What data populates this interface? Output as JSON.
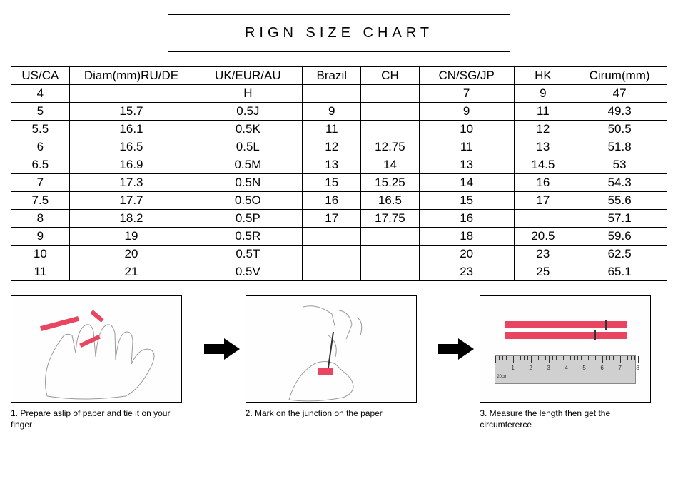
{
  "title": "RIGN  SIZE  CHART",
  "table": {
    "columns": [
      "US/CA",
      "Diam(mm)RU/DE",
      "UK/EUR/AU",
      "Brazil",
      "CH",
      "CN/SG/JP",
      "HK",
      "Cirum(mm)"
    ],
    "col_widths": [
      "8%",
      "17%",
      "15%",
      "8%",
      "8%",
      "13%",
      "8%",
      "13%"
    ],
    "rows": [
      [
        "4",
        "",
        "H",
        "",
        "",
        "7",
        "9",
        "47"
      ],
      [
        "5",
        "15.7",
        "0.5J",
        "9",
        "",
        "9",
        "11",
        "49.3"
      ],
      [
        "5.5",
        "16.1",
        "0.5K",
        "11",
        "",
        "10",
        "12",
        "50.5"
      ],
      [
        "6",
        "16.5",
        "0.5L",
        "12",
        "12.75",
        "11",
        "13",
        "51.8"
      ],
      [
        "6.5",
        "16.9",
        "0.5M",
        "13",
        "14",
        "13",
        "14.5",
        "53"
      ],
      [
        "7",
        "17.3",
        "0.5N",
        "15",
        "15.25",
        "14",
        "16",
        "54.3"
      ],
      [
        "7.5",
        "17.7",
        "0.5O",
        "16",
        "16.5",
        "15",
        "17",
        "55.6"
      ],
      [
        "8",
        "18.2",
        "0.5P",
        "17",
        "17.75",
        "16",
        "",
        "57.1"
      ],
      [
        "9",
        "19",
        "0.5R",
        "",
        "",
        "18",
        "20.5",
        "59.6"
      ],
      [
        "10",
        "20",
        "0.5T",
        "",
        "",
        "20",
        "23",
        "62.5"
      ],
      [
        "11",
        "21",
        "0.5V",
        "",
        "",
        "23",
        "25",
        "65.1"
      ]
    ]
  },
  "steps": [
    {
      "caption": "1. Prepare aslip of paper and tie it on your finger"
    },
    {
      "caption": "2. Mark on the junction on the paper"
    },
    {
      "caption": "3. Measure the length then get the circumfererce"
    }
  ],
  "colors": {
    "border": "#000000",
    "text": "#000000",
    "background": "#ffffff",
    "accent": "#e94560",
    "ruler": "#d0d0d0",
    "line_art": "#888888"
  },
  "ruler": {
    "values": [
      "1",
      "2",
      "3",
      "4",
      "5",
      "6",
      "7",
      "8"
    ],
    "unit_label": "20cm"
  }
}
